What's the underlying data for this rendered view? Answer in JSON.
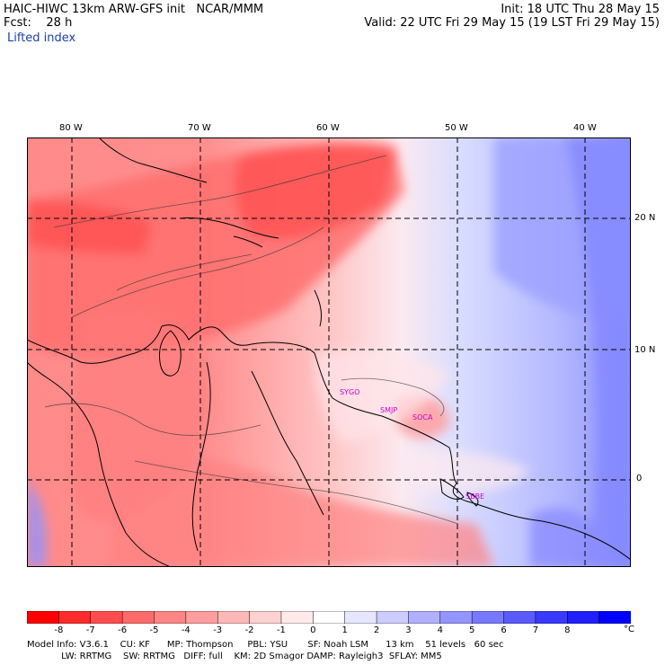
{
  "header": {
    "line1_left": "HAIC-HIWC 13km ARW-GFS init   NCAR/MMM",
    "line2_left": "Fcst:    28 h",
    "line3_left": "Lifted index",
    "line1_right": "Init: 18 UTC Thu 28 May 15",
    "line2_right": "Valid: 22 UTC Fri 29 May 15 (19 LST Fri 29 May 15)"
  },
  "map": {
    "lon_labels": [
      "80 W",
      "70 W",
      "60 W",
      "50 W",
      "40 W"
    ],
    "lat_labels": [
      "20 N",
      "10 N",
      "0"
    ],
    "station_labels": [
      "SYGO",
      "SMJP",
      "SOCA",
      "SBBE"
    ]
  },
  "colorbar": {
    "labels": [
      "-8",
      "-7",
      "-6",
      "-5",
      "-4",
      "-3",
      "-2",
      "-1",
      "0",
      "1",
      "2",
      "3",
      "4",
      "5",
      "6",
      "7",
      "8"
    ],
    "unit": "°C",
    "colors": [
      "#ff0000",
      "#ff2a2a",
      "#ff4d4d",
      "#ff6b6b",
      "#ff8585",
      "#ff9e9e",
      "#ffb8b8",
      "#ffd1d1",
      "#ffeaea",
      "#ffffff",
      "#e6e6ff",
      "#ccccff",
      "#b0b0ff",
      "#9494ff",
      "#7878ff",
      "#5a5aff",
      "#3a3aff",
      "#1f1fff",
      "#0000ff"
    ]
  },
  "footer": {
    "line1": "Model Info: V3.6.1    CU: KF      MP: Thompson     PBL: YSU       SF: Noah LSM      13 km    51 levels   60 sec",
    "line2": "            LW: RRTMG    SW: RRTMG   DIFF: full    KM: 2D Smagor DAMP: Rayleigh3  SFLAY: MM5"
  }
}
